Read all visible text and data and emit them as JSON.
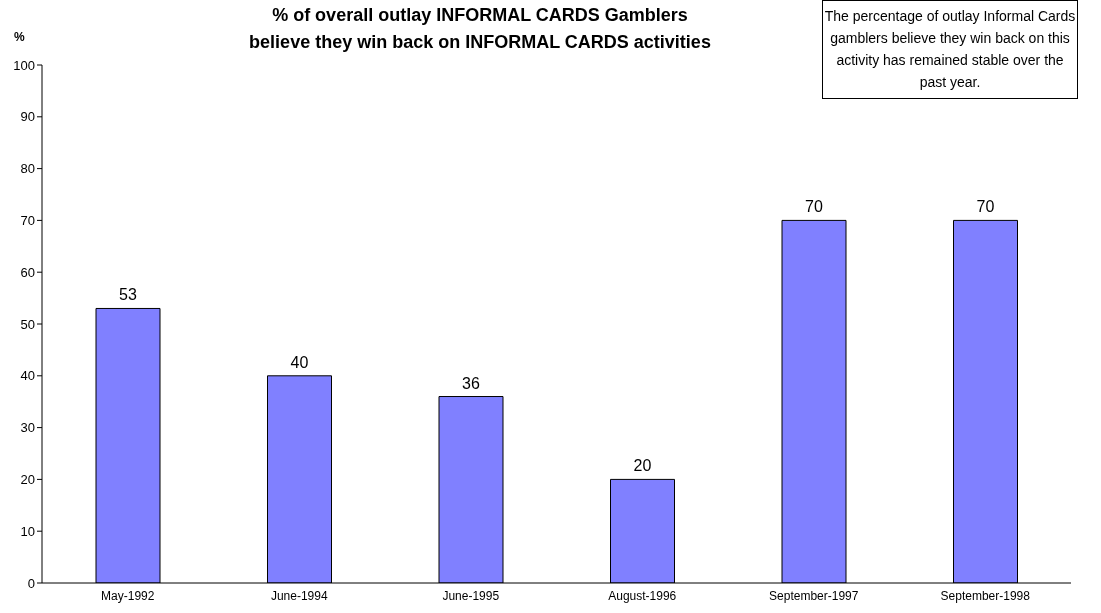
{
  "chart_data": {
    "type": "bar",
    "title": "% of overall outlay INFORMAL CARDS Gamblers believe they win back on INFORMAL CARDS activities",
    "ylabel": "%",
    "categories": [
      "May-1992",
      "June-1994",
      "June-1995",
      "August-1996",
      "September-1997",
      "September-1998"
    ],
    "values": [
      53,
      40,
      36,
      20,
      70,
      70
    ],
    "color": "#8080ff",
    "ylim": [
      0,
      100
    ],
    "yticks": [
      0,
      10,
      20,
      30,
      40,
      50,
      60,
      70,
      80,
      90,
      100
    ],
    "grid": false,
    "data_labels": true,
    "annotations": [
      "The percentage of outlay Informal Cards gamblers believe they win back on this activity has remained  stable over the past year."
    ]
  }
}
